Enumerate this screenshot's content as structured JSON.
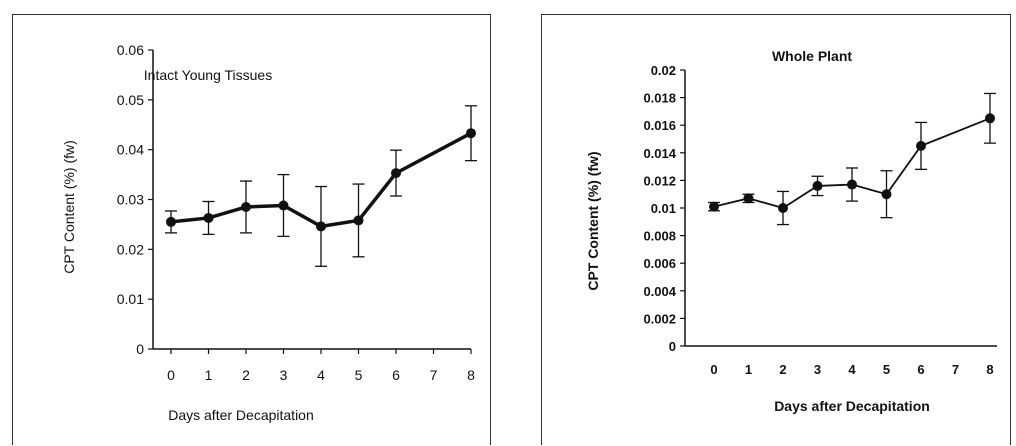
{
  "chart_data": [
    {
      "type": "line",
      "title": "Intact Young Tissues",
      "xlabel": "Days after Decapitation",
      "ylabel": "CPT Content (%) (fw)",
      "categories": [
        "0",
        "1",
        "2",
        "3",
        "4",
        "5",
        "6",
        "7",
        "8"
      ],
      "ylim": [
        0,
        0.06
      ],
      "yticks": [
        "0",
        "0.01",
        "0.02",
        "0.03",
        "0.04",
        "0.05",
        "0.06"
      ],
      "grid": false,
      "series": [
        {
          "x": [
            0,
            1,
            2,
            3,
            4,
            5,
            6,
            8
          ],
          "values": [
            0.0255,
            0.0263,
            0.0285,
            0.0288,
            0.0246,
            0.0258,
            0.0353,
            0.0433
          ],
          "errors": [
            0.0022,
            0.0033,
            0.0052,
            0.0062,
            0.008,
            0.0073,
            0.0046,
            0.0055
          ]
        }
      ]
    },
    {
      "type": "line",
      "title": "Whole Plant",
      "xlabel": "Days after Decapitation",
      "ylabel": "CPT Content (%) (fw)",
      "categories": [
        "0",
        "1",
        "2",
        "3",
        "4",
        "5",
        "6",
        "7",
        "8"
      ],
      "ylim": [
        0,
        0.02
      ],
      "yticks": [
        "0",
        "0.002",
        "0.004",
        "0.006",
        "0.008",
        "0.01",
        "0.012",
        "0.014",
        "0.016",
        "0.018",
        "0.02"
      ],
      "grid": false,
      "series": [
        {
          "x": [
            0,
            1,
            2,
            3,
            4,
            5,
            6,
            8
          ],
          "values": [
            0.0101,
            0.0107,
            0.01,
            0.0116,
            0.0117,
            0.011,
            0.0145,
            0.0165
          ],
          "errors": [
            0.0003,
            0.0003,
            0.0012,
            0.0007,
            0.0012,
            0.0017,
            0.0017,
            0.0018
          ]
        }
      ]
    }
  ]
}
